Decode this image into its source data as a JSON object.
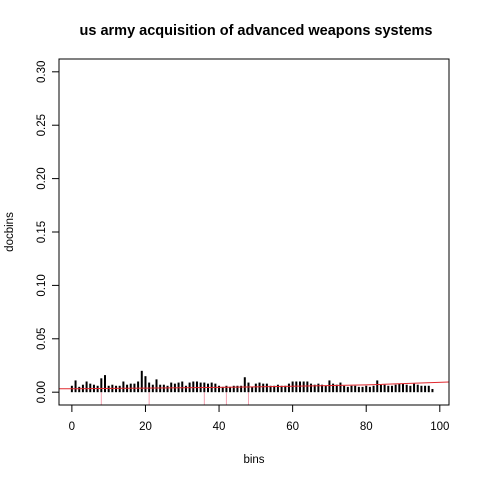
{
  "chart_data": {
    "type": "bar",
    "title": "us army acquisition of advanced weapons systems",
    "xlabel": "bins",
    "ylabel": "docbins",
    "xlim": [
      -3.5,
      102.5
    ],
    "ylim": [
      -0.012,
      0.312
    ],
    "x_ticks": [
      0,
      20,
      40,
      60,
      80,
      100
    ],
    "y_ticks": [
      0.0,
      0.05,
      0.1,
      0.15,
      0.2,
      0.25,
      0.3
    ],
    "y_tick_labels": [
      "0.00",
      "0.05",
      "0.10",
      "0.15",
      "0.20",
      "0.25",
      "0.30"
    ],
    "bar_color": "#000000",
    "trend_color": "#e0282e",
    "marker_color": "#f4a0b0",
    "values": [
      0.006,
      0.011,
      0.005,
      0.007,
      0.01,
      0.008,
      0.007,
      0.006,
      0.013,
      0.016,
      0.006,
      0.007,
      0.006,
      0.006,
      0.01,
      0.007,
      0.008,
      0.008,
      0.01,
      0.02,
      0.015,
      0.009,
      0.007,
      0.012,
      0.007,
      0.007,
      0.006,
      0.009,
      0.008,
      0.009,
      0.01,
      0.006,
      0.009,
      0.01,
      0.01,
      0.009,
      0.009,
      0.008,
      0.009,
      0.008,
      0.006,
      0.005,
      0.006,
      0.005,
      0.006,
      0.006,
      0.006,
      0.014,
      0.009,
      0.005,
      0.008,
      0.009,
      0.008,
      0.008,
      0.006,
      0.006,
      0.007,
      0.006,
      0.006,
      0.008,
      0.01,
      0.01,
      0.01,
      0.01,
      0.01,
      0.008,
      0.007,
      0.008,
      0.007,
      0.006,
      0.011,
      0.008,
      0.007,
      0.009,
      0.006,
      0.005,
      0.006,
      0.006,
      0.005,
      0.005,
      0.006,
      0.005,
      0.006,
      0.011,
      0.007,
      0.007,
      0.006,
      0.006,
      0.007,
      0.008,
      0.008,
      0.007,
      0.006,
      0.008,
      0.007,
      0.006,
      0.006,
      0.006,
      0.003
    ],
    "trend_line": {
      "x": [
        -3.5,
        0,
        20,
        40,
        60,
        80,
        102.5
      ],
      "y": [
        0.0032,
        0.0033,
        0.0038,
        0.0045,
        0.0055,
        0.0068,
        0.0095
      ]
    },
    "markers": {
      "x": [
        8,
        21,
        36,
        42,
        48
      ],
      "y_range": [
        -0.012,
        0.0
      ]
    }
  }
}
